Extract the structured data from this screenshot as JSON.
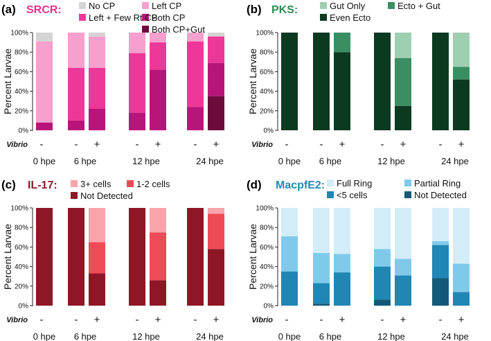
{
  "chart_data": [
    {
      "type": "bar",
      "stacked": true,
      "panel": "(a)",
      "gene": "SRCR:",
      "ylabel": "Percent Larvae",
      "ylim": [
        0,
        100
      ],
      "yticks": [
        "0%",
        "20%",
        "40%",
        "60%",
        "80%",
        "100%"
      ],
      "vibrio_label": "Vibrio",
      "colors": {
        "accent": "#e8338f"
      },
      "categories": [
        "-",
        "-",
        "+",
        "-",
        "+",
        "-",
        "+"
      ],
      "timepoints": [
        {
          "label": "0 hpe"
        },
        {
          "label": "6 hpe"
        },
        {
          "label": "12 hpe"
        },
        {
          "label": "24 hpe"
        }
      ],
      "series": [
        {
          "name": "Both CP+Gut",
          "color": "#6e0b3d",
          "values": [
            0,
            0,
            0,
            0,
            0,
            0,
            35
          ]
        },
        {
          "name": "Both CP",
          "color": "#b8157a",
          "values": [
            8,
            10,
            22,
            18,
            62,
            24,
            34
          ]
        },
        {
          "name": "Left + Few Rt CP",
          "color": "#ec3898",
          "values": [
            0,
            54,
            42,
            61,
            28,
            67,
            27
          ]
        },
        {
          "name": "Left CP",
          "color": "#f6a0cd",
          "values": [
            83,
            36,
            32,
            21,
            10,
            9,
            0
          ]
        },
        {
          "name": "No CP",
          "color": "#d4d4d4",
          "values": [
            9,
            0,
            4,
            0,
            0,
            0,
            4
          ]
        }
      ]
    },
    {
      "type": "bar",
      "stacked": true,
      "panel": "(b)",
      "gene": "PKS:",
      "ylabel": "Percent Larvae",
      "ylim": [
        0,
        100
      ],
      "yticks": [
        "0%",
        "20%",
        "40%",
        "60%",
        "80%",
        "100%"
      ],
      "vibrio_label": "Vibrio",
      "colors": {
        "accent": "#2e8b57"
      },
      "categories": [
        "-",
        "-",
        "+",
        "-",
        "+",
        "-",
        "+"
      ],
      "timepoints": [
        {
          "label": "0 hpe"
        },
        {
          "label": "6 hpe"
        },
        {
          "label": "12 hpe"
        },
        {
          "label": "24 hpe"
        }
      ],
      "series": [
        {
          "name": "Even Ecto",
          "color": "#0c3a20",
          "values": [
            100,
            100,
            80,
            100,
            25,
            100,
            52
          ]
        },
        {
          "name": "Ecto + Gut",
          "color": "#3a8f62",
          "values": [
            0,
            0,
            20,
            0,
            49,
            0,
            13
          ]
        },
        {
          "name": "Gut Only",
          "color": "#9ecfb0",
          "values": [
            0,
            0,
            0,
            0,
            26,
            0,
            35
          ]
        }
      ]
    },
    {
      "type": "bar",
      "stacked": true,
      "panel": "(c)",
      "gene": "IL-17:",
      "ylabel": "Percent Larvae",
      "ylim": [
        0,
        100
      ],
      "yticks": [
        "0%",
        "20%",
        "40%",
        "60%",
        "80%",
        "100%"
      ],
      "vibrio_label": "Vibrio",
      "colors": {
        "accent": "#8b1a2a"
      },
      "categories": [
        "-",
        "-",
        "+",
        "-",
        "+",
        "-",
        "+"
      ],
      "timepoints": [
        {
          "label": "0 hpe"
        },
        {
          "label": "6 hpe"
        },
        {
          "label": "12 hpe"
        },
        {
          "label": "24 hpe"
        }
      ],
      "series": [
        {
          "name": "Not Detected",
          "color": "#8e1726",
          "values": [
            100,
            100,
            33,
            100,
            26,
            100,
            58
          ]
        },
        {
          "name": "1-2 cells",
          "color": "#ee4b56",
          "values": [
            0,
            0,
            32,
            0,
            49,
            0,
            36
          ]
        },
        {
          "name": "3+ cells",
          "color": "#f7a5ab",
          "values": [
            0,
            0,
            35,
            0,
            25,
            0,
            6
          ]
        }
      ]
    },
    {
      "type": "bar",
      "stacked": true,
      "panel": "(d)",
      "gene": "MacpfE2:",
      "ylabel": "Percent Larvae",
      "ylim": [
        0,
        100
      ],
      "yticks": [
        "0%",
        "20%",
        "40%",
        "60%",
        "80%",
        "100%"
      ],
      "vibrio_label": "Vibrio",
      "colors": {
        "accent": "#1f8bb5"
      },
      "categories": [
        "-",
        "-",
        "+",
        "-",
        "+",
        "-",
        "+"
      ],
      "timepoints": [
        {
          "label": "0 hpe"
        },
        {
          "label": "6 hpe"
        },
        {
          "label": "12 hpe"
        },
        {
          "label": "24 hpe"
        }
      ],
      "series": [
        {
          "name": "Not Detected",
          "color": "#145a78",
          "values": [
            0,
            2,
            0,
            6,
            0,
            28,
            0
          ]
        },
        {
          "name": "<5 cells",
          "color": "#2086b4",
          "values": [
            35,
            21,
            34,
            34,
            31,
            34,
            14
          ]
        },
        {
          "name": "Partial Ring",
          "color": "#7fcaea",
          "values": [
            36,
            31,
            19,
            18,
            17,
            4,
            29
          ]
        },
        {
          "name": "Full Ring",
          "color": "#d3edf8",
          "values": [
            29,
            46,
            47,
            42,
            52,
            34,
            57
          ]
        }
      ]
    }
  ]
}
